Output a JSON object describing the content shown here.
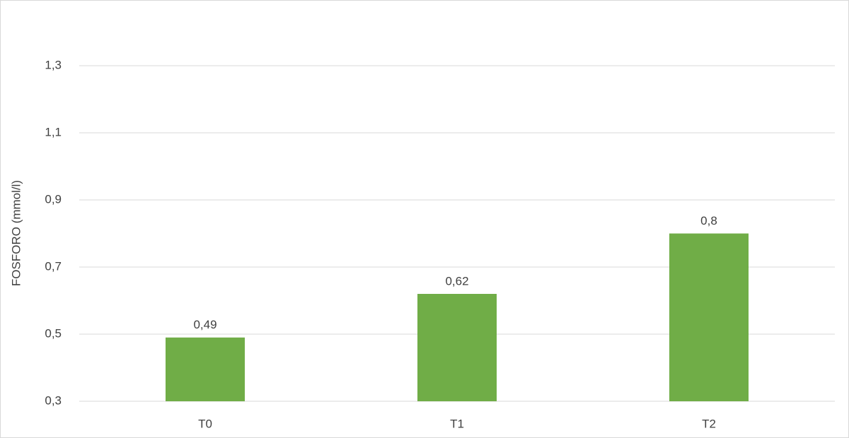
{
  "chart_data": {
    "type": "bar",
    "y_label": "FOSFORO (mmol/l)",
    "categories": [
      "T0",
      "T1",
      "T2"
    ],
    "values": [
      0.49,
      0.62,
      0.8
    ],
    "value_labels": [
      "0,49",
      "0,62",
      "0,8"
    ],
    "color": "#70ad47",
    "ylim": [
      0.3,
      1.3
    ],
    "yticks": [
      {
        "value": 0.3,
        "label": "0,3"
      },
      {
        "value": 0.5,
        "label": "0,5"
      },
      {
        "value": 0.7,
        "label": "0,7"
      },
      {
        "value": 0.9,
        "label": "0,9"
      },
      {
        "value": 1.1,
        "label": "1,1"
      },
      {
        "value": 1.3,
        "label": "1,3"
      }
    ],
    "grid": true
  }
}
